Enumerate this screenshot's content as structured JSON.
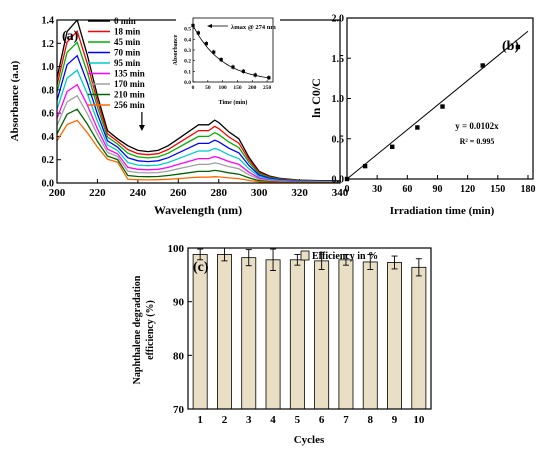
{
  "chart_data": [
    {
      "panel": "(a)",
      "type": "line",
      "xlabel": "Wavelength (nm)",
      "ylabel": "Absorbance (a.u)",
      "xlim": [
        200,
        340
      ],
      "ylim": [
        0,
        1.4
      ],
      "xticks": [
        "200",
        "220",
        "240",
        "260",
        "280",
        "300",
        "320",
        "340"
      ],
      "yticks": [
        "0.0",
        "0.2",
        "0.4",
        "0.6",
        "0.8",
        "1.0",
        "1.2",
        "1.4"
      ],
      "legend_position": "top-left",
      "arrow_at_x": 242,
      "series": [
        {
          "name": "0 min",
          "color": "#000000",
          "scale": 1.0
        },
        {
          "name": "18 min",
          "color": "#ff0000",
          "scale": 0.9
        },
        {
          "name": "45 min",
          "color": "#00b000",
          "scale": 0.8
        },
        {
          "name": "70 min",
          "color": "#0000ff",
          "scale": 0.68
        },
        {
          "name": "95 min",
          "color": "#00cccc",
          "scale": 0.55
        },
        {
          "name": "135 min",
          "color": "#ff00ff",
          "scale": 0.42
        },
        {
          "name": "170 min",
          "color": "#a0a0a0",
          "scale": 0.32
        },
        {
          "name": "210 min",
          "color": "#006400",
          "scale": 0.2
        },
        {
          "name": "256 min",
          "color": "#ff6a00",
          "scale": 0.1
        }
      ],
      "x": [
        200,
        205,
        210,
        215,
        220,
        225,
        230,
        235,
        240,
        245,
        250,
        255,
        260,
        265,
        270,
        275,
        278,
        280,
        285,
        290,
        295,
        300,
        305,
        310,
        320,
        330,
        340
      ],
      "base_values": [
        0.9,
        1.3,
        1.4,
        1.1,
        0.75,
        0.45,
        0.38,
        0.32,
        0.28,
        0.27,
        0.28,
        0.32,
        0.38,
        0.44,
        0.5,
        0.5,
        0.54,
        0.52,
        0.44,
        0.38,
        0.22,
        0.1,
        0.06,
        0.04,
        0.025,
        0.02,
        0.02
      ],
      "inset": {
        "title": "λmax @ 274 nm",
        "xlabel": "Time (min)",
        "ylabel": "Absorbance",
        "xlim": [
          0,
          270
        ],
        "ylim": [
          0,
          0.6
        ],
        "xticks": [
          "0",
          "50",
          "100",
          "150",
          "200",
          "250"
        ],
        "yticks": [
          "0.0",
          "0.1",
          "0.2",
          "0.3",
          "0.4",
          "0.5"
        ],
        "x": [
          0,
          18,
          45,
          70,
          95,
          135,
          170,
          210,
          256
        ],
        "y": [
          0.53,
          0.46,
          0.36,
          0.28,
          0.21,
          0.14,
          0.1,
          0.065,
          0.04
        ]
      }
    },
    {
      "panel": "(b)",
      "type": "scatter",
      "xlabel": "Irradiation time (min)",
      "ylabel": "ln C0/C",
      "xlim": [
        0,
        185
      ],
      "ylim": [
        0,
        2.0
      ],
      "xticks": [
        "0",
        "30",
        "60",
        "90",
        "120",
        "150",
        "180"
      ],
      "yticks": [
        "0.0",
        "0.5",
        "1.0",
        "1.5",
        "2.0"
      ],
      "x": [
        0,
        18,
        45,
        70,
        95,
        135,
        170
      ],
      "y": [
        0,
        0.16,
        0.4,
        0.64,
        0.9,
        1.41,
        1.64
      ],
      "fit_slope": 0.0102,
      "annotations": [
        "y = 0.0102x",
        "R² = 0.995"
      ]
    },
    {
      "panel": "(c)",
      "type": "bar",
      "xlabel": "Cycles",
      "ylabel": "Naphthalene degradation efficiency (%)",
      "ylim": [
        70,
        100
      ],
      "yticks": [
        "70",
        "80",
        "90",
        "100"
      ],
      "categories": [
        "1",
        "2",
        "3",
        "4",
        "5",
        "6",
        "7",
        "8",
        "9",
        "10"
      ],
      "series": [
        {
          "name": "Efficiency in %",
          "color": "#e8dfc4",
          "values": [
            98.8,
            98.8,
            98.2,
            97.8,
            97.8,
            97.6,
            97.8,
            97.4,
            97.3,
            96.4
          ],
          "errors": [
            1.0,
            1.2,
            1.5,
            2.0,
            1.0,
            1.6,
            1.0,
            1.4,
            1.2,
            1.6
          ]
        }
      ],
      "legend_position": "top-right"
    }
  ]
}
